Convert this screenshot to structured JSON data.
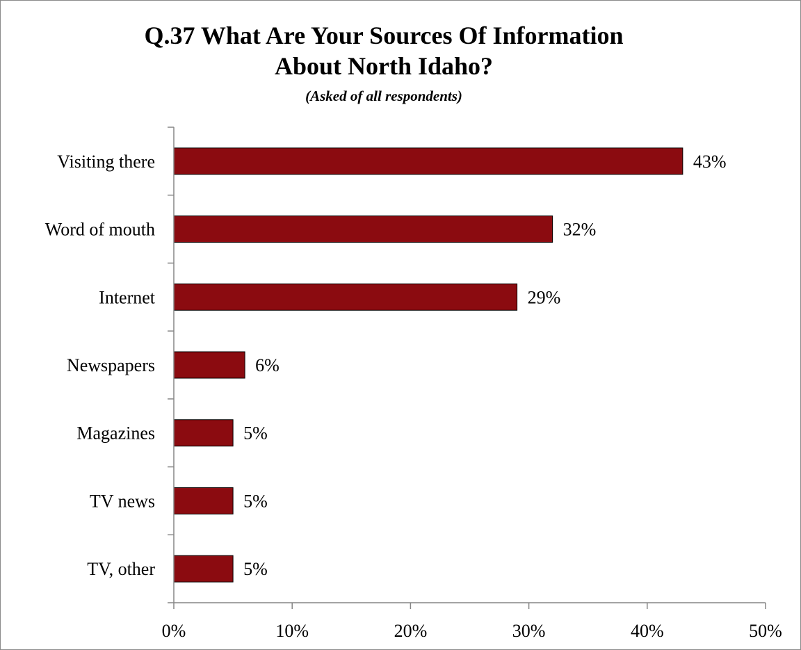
{
  "chart_data": {
    "type": "bar",
    "orientation": "horizontal",
    "title_lines": [
      "Q.37 What Are Your Sources Of Information",
      "About North Idaho?"
    ],
    "subtitle": "(Asked of all respondents)",
    "categories": [
      "Visiting there",
      "Word of mouth",
      "Internet",
      "Newspapers",
      "Magazines",
      "TV news",
      "TV, other"
    ],
    "values": [
      43,
      32,
      29,
      6,
      5,
      5,
      5
    ],
    "value_labels": [
      "43%",
      "32%",
      "29%",
      "6%",
      "5%",
      "5%",
      "5%"
    ],
    "xlim": [
      0,
      50
    ],
    "x_ticks": [
      0,
      10,
      20,
      30,
      40,
      50
    ],
    "x_tick_labels": [
      "0%",
      "10%",
      "20%",
      "30%",
      "40%",
      "50%"
    ],
    "bar_color": "#8b0b10",
    "grid": false,
    "legend": "none"
  }
}
